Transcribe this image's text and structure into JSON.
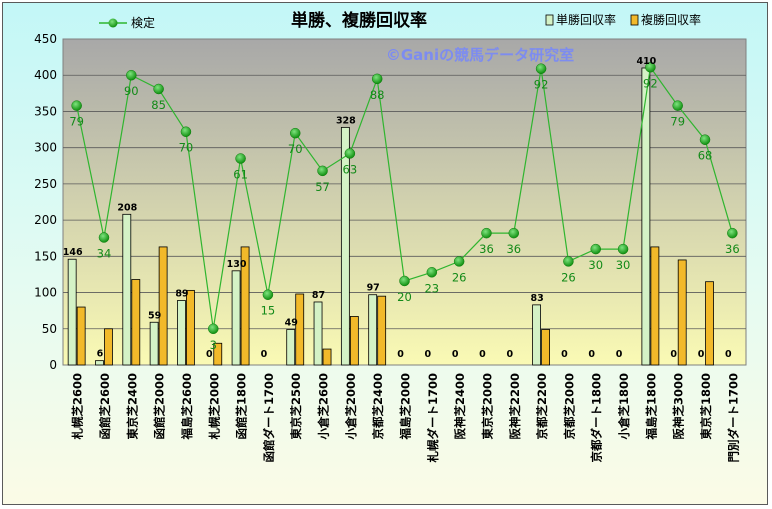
{
  "chart_data": {
    "type": "bar",
    "title": "単勝、複勝回収率",
    "watermark": "©Ganiの競馬データ研究室",
    "ylim": [
      0,
      450
    ],
    "yticks": [
      "0",
      "50",
      "100",
      "150",
      "200",
      "250",
      "300",
      "350",
      "400",
      "450"
    ],
    "grid": true,
    "legend_placement": "top",
    "categories": [
      "札幌芝2600",
      "函館芝2600",
      "東京芝2400",
      "函館芝2000",
      "福島芝2600",
      "札幌芝2000",
      "函館芝1800",
      "函館ダート1700",
      "東京芝2500",
      "小倉芝2600",
      "小倉芝2000",
      "京都芝2400",
      "福島芝2000",
      "札幌ダート1700",
      "阪神芝2400",
      "東京芝2000",
      "阪神芝2200",
      "京都芝2200",
      "京都芝2000",
      "京都ダート1800",
      "小倉芝1800",
      "福島芝1800",
      "阪神芝3000",
      "東京芝1800",
      "門別ダート1700"
    ],
    "series": [
      {
        "name": "単勝回収率",
        "kind": "bar",
        "color": "#d4f2c6",
        "values": [
          146,
          6,
          208,
          59,
          89,
          0,
          130,
          0,
          49,
          87,
          328,
          97,
          0,
          0,
          0,
          0,
          0,
          83,
          0,
          0,
          0,
          410,
          0,
          0,
          0
        ],
        "labels": [
          "146",
          "6",
          "208",
          "59",
          "89",
          "0",
          "130",
          "0",
          "49",
          "87",
          "328",
          "97",
          "0",
          "0",
          "0",
          "0",
          "0",
          "83",
          "0",
          "0",
          "0",
          "410",
          "0",
          "0",
          "0"
        ]
      },
      {
        "name": "複勝回収率",
        "kind": "bar",
        "color": "#f2b92a",
        "values": [
          80,
          50,
          118,
          163,
          103,
          30,
          163,
          0,
          98,
          22,
          67,
          95,
          0,
          0,
          0,
          0,
          0,
          49,
          0,
          0,
          0,
          163,
          145,
          115,
          0
        ]
      },
      {
        "name": "検定",
        "kind": "line",
        "color": "#2fb52f",
        "values": [
          358,
          176,
          400,
          381,
          322,
          50,
          285,
          97,
          320,
          268,
          292,
          395,
          116,
          128,
          143,
          182,
          182,
          409,
          143,
          160,
          160,
          411,
          358,
          311,
          182
        ],
        "labels": [
          "79",
          "34",
          "90",
          "85",
          "70",
          "3",
          "61",
          "15",
          "70",
          "57",
          "63",
          "88",
          "20",
          "23",
          "26",
          "36",
          "36",
          "92",
          "26",
          "30",
          "30",
          "92",
          "79",
          "68",
          "36"
        ]
      }
    ],
    "colors": {
      "plot_top": "#a8a8a8",
      "plot_bottom": "#fafab4",
      "line": "#2fb52f",
      "marker": "#169f16",
      "line_label": "#138a18"
    }
  }
}
